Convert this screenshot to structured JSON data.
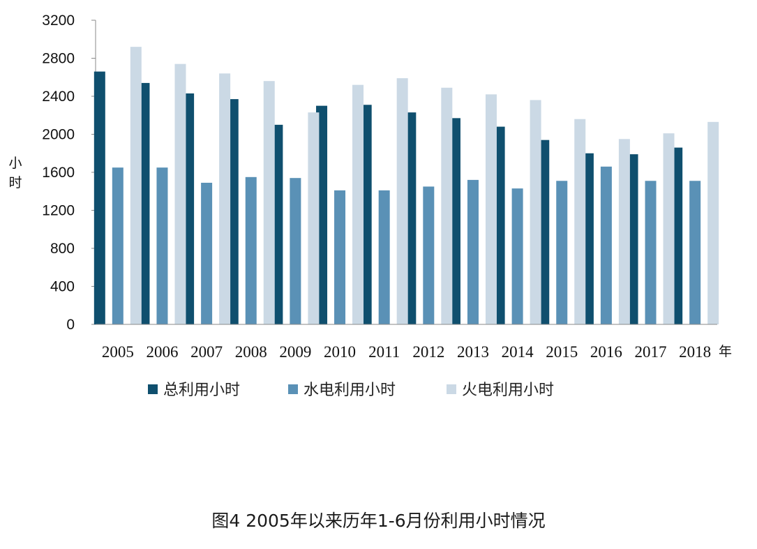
{
  "caption": "图4 2005年以来历年1-6月份利用小时情况",
  "chart_data": {
    "type": "bar",
    "title": "",
    "ylabel": "小时",
    "xlabel": "年",
    "ylim": [
      0,
      3200
    ],
    "yticks": [
      0,
      400,
      800,
      1200,
      1600,
      2000,
      2400,
      2800,
      3200
    ],
    "grid": false,
    "legend_position": "bottom",
    "categories": [
      "2005",
      "2006",
      "2007",
      "2008",
      "2009",
      "2010",
      "2011",
      "2012",
      "2013",
      "2014",
      "2015",
      "2016",
      "2017",
      "2018"
    ],
    "series": [
      {
        "name": "总利用小时",
        "color": "#0f4f6e",
        "values": [
          2660,
          2540,
          2430,
          2370,
          2100,
          2300,
          2310,
          2230,
          2170,
          2080,
          1940,
          1800,
          1790,
          1860
        ]
      },
      {
        "name": "水电利用小时",
        "color": "#5a91b6",
        "values": [
          1650,
          1650,
          1490,
          1550,
          1540,
          1410,
          1410,
          1450,
          1520,
          1430,
          1510,
          1660,
          1510,
          1510
        ]
      },
      {
        "name": "火电利用小时",
        "color": "#cbd9e5",
        "values": [
          2920,
          2740,
          2640,
          2560,
          2230,
          2520,
          2590,
          2490,
          2420,
          2360,
          2160,
          1950,
          2010,
          2130
        ]
      }
    ]
  }
}
